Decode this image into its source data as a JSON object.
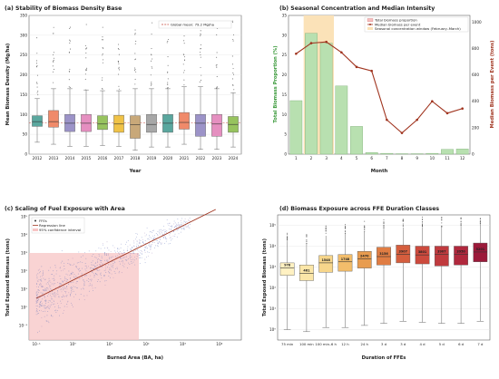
{
  "colors": {
    "a_boxes": [
      "#5aa79e",
      "#f08a6a",
      "#9c93c8",
      "#e58fc0",
      "#97c35e",
      "#f0c246",
      "#c8a879",
      "#a7a7a7",
      "#5aa79e",
      "#f08a6a",
      "#9c93c8",
      "#e58fc0",
      "#97c35e"
    ],
    "b_bar": "#b8e0b0",
    "b_line": "#a0341f",
    "b_window": "#fbe2b8",
    "c_points": "#5b6fb8",
    "c_line": "#a0341f",
    "c_ci": "#f7c4c4",
    "d_boxes": [
      "#fff1c2",
      "#fbe6a8",
      "#f7d68b",
      "#f2bd6b",
      "#e89c4f",
      "#e07d43",
      "#d55e3e",
      "#cc4a3d",
      "#c03a3e",
      "#b0283d",
      "#9b1a3a"
    ]
  },
  "chart_data": [
    {
      "type": "box",
      "title": "(a) Stability of Biomass Density Base",
      "xlabel": "Year",
      "ylabel": "Mean Biomass Density (Mg/ha)",
      "ylim": [
        0,
        350
      ],
      "yticks": [
        "0",
        "50",
        "100",
        "150",
        "200",
        "250",
        "300",
        "350"
      ],
      "categories": [
        "2012",
        "2013",
        "2014",
        "2015",
        "2016",
        "2017",
        "2018",
        "2019",
        "2020",
        "2021",
        "2022",
        "2023",
        "2024"
      ],
      "boxes": [
        {
          "q1": 70,
          "median": 82,
          "q3": 97,
          "wlo": 30,
          "whi": 140
        },
        {
          "q1": 68,
          "median": 82,
          "q3": 110,
          "wlo": 25,
          "whi": 165
        },
        {
          "q1": 57,
          "median": 78,
          "q3": 100,
          "wlo": 20,
          "whi": 165
        },
        {
          "q1": 57,
          "median": 78,
          "q3": 100,
          "wlo": 20,
          "whi": 162
        },
        {
          "q1": 62,
          "median": 76,
          "q3": 97,
          "wlo": 22,
          "whi": 160
        },
        {
          "q1": 55,
          "median": 76,
          "q3": 98,
          "wlo": 20,
          "whi": 160
        },
        {
          "q1": 40,
          "median": 74,
          "q3": 97,
          "wlo": 10,
          "whi": 165
        },
        {
          "q1": 55,
          "median": 75,
          "q3": 100,
          "wlo": 18,
          "whi": 165
        },
        {
          "q1": 55,
          "median": 78,
          "q3": 100,
          "wlo": 18,
          "whi": 165
        },
        {
          "q1": 63,
          "median": 80,
          "q3": 105,
          "wlo": 25,
          "whi": 170
        },
        {
          "q1": 45,
          "median": 78,
          "q3": 100,
          "wlo": 12,
          "whi": 170
        },
        {
          "q1": 45,
          "median": 76,
          "q3": 100,
          "wlo": 12,
          "whi": 165
        },
        {
          "q1": 55,
          "median": 75,
          "q3": 95,
          "wlo": 18,
          "whi": 155
        }
      ],
      "hline": 79.2,
      "legend": [
        "Global mean: 79.2 Mg/ha"
      ]
    },
    {
      "type": "bar+line",
      "title": "(b) Seasonal Concentration and Median Intensity",
      "xlabel": "Month",
      "ylabel": "Total Biomass Proportion (%)",
      "y2label": "Median Biomass per Event (tons)",
      "categories": [
        "1",
        "2",
        "3",
        "4",
        "5",
        "6",
        "7",
        "8",
        "9",
        "10",
        "11",
        "12"
      ],
      "ylim": [
        0,
        35
      ],
      "yticks": [
        "0",
        "5",
        "10",
        "15",
        "20",
        "25",
        "30",
        "35"
      ],
      "y2lim": [
        0,
        1050
      ],
      "y2ticks": [
        "0",
        "200",
        "400",
        "600",
        "800",
        "1000"
      ],
      "bars": [
        13.5,
        30.5,
        28,
        17.2,
        7,
        0.4,
        0.2,
        0.1,
        0.1,
        0.2,
        1.2,
        1.3
      ],
      "line": [
        760,
        840,
        850,
        770,
        660,
        630,
        260,
        160,
        260,
        400,
        310,
        345
      ],
      "window_months": [
        2,
        3
      ],
      "legend": [
        "Total biomass proportion",
        "Median biomass per event",
        "Seasonal concentration window (February–March)"
      ]
    },
    {
      "type": "scatter",
      "title": "(c) Scaling of Fuel Exposure with Area",
      "xlabel": "Burned Area (BA, ha)",
      "ylabel": "Total Exposed Biomass (tons)",
      "xscale": "log",
      "yscale": "log",
      "xlim": [
        -1.2,
        4.6
      ],
      "ylim": [
        -1.8,
        5.1
      ],
      "xticks": [
        "10⁻¹",
        "10⁰",
        "10¹",
        "10²",
        "10³",
        "10⁴"
      ],
      "yticks": [
        "10⁻¹",
        "10⁰",
        "10¹",
        "10²",
        "10³",
        "10⁴",
        "10⁵"
      ],
      "regression": {
        "slope": 1,
        "intercept": 1.5
      },
      "ci_xmax": 1.8,
      "legend": [
        "FFEs",
        "Regression line",
        "95% confidence interval"
      ]
    },
    {
      "type": "box",
      "title": "(d) Biomass Exposure across FFE Duration Classes",
      "xlabel": "Duration of FFEs",
      "ylabel": "Total Exposed Biomass (tons)",
      "yscale": "log",
      "ylim": [
        -0.5,
        5.5
      ],
      "yticks": [
        "10⁰",
        "10¹",
        "10²",
        "10³",
        "10⁴",
        "10⁵"
      ],
      "categories": [
        "75 min",
        "100 min",
        "100 min–6 h",
        "12 h",
        "24 h",
        "3 d",
        "3 d",
        "4 d",
        "5 d",
        "6 d",
        "7 d"
      ],
      "labels": [
        "978",
        "461",
        "1548",
        "1748",
        "2470",
        "3156",
        "3907",
        "3801",
        "3907",
        "3950",
        "5201"
      ],
      "boxes": [
        {
          "q1": 2.6,
          "median": 2.95,
          "q3": 3.2,
          "wlo": 0,
          "whi": 4.2
        },
        {
          "q1": 2.35,
          "median": 2.7,
          "q3": 3.1,
          "wlo": -0.1,
          "whi": 4.1
        },
        {
          "q1": 2.75,
          "median": 3.2,
          "q3": 3.55,
          "wlo": 0.1,
          "whi": 4.5
        },
        {
          "q1": 2.8,
          "median": 3.25,
          "q3": 3.6,
          "wlo": 0.1,
          "whi": 4.6
        },
        {
          "q1": 2.95,
          "median": 3.4,
          "q3": 3.75,
          "wlo": 0.2,
          "whi": 4.7
        },
        {
          "q1": 3.1,
          "median": 3.5,
          "q3": 3.95,
          "wlo": 0.3,
          "whi": 4.8
        },
        {
          "q1": 3.2,
          "median": 3.6,
          "q3": 4.05,
          "wlo": 0.4,
          "whi": 4.9
        },
        {
          "q1": 3.15,
          "median": 3.58,
          "q3": 4.0,
          "wlo": 0.35,
          "whi": 4.9
        },
        {
          "q1": 3.05,
          "median": 3.6,
          "q3": 4.0,
          "wlo": 0.3,
          "whi": 4.9
        },
        {
          "q1": 3.1,
          "median": 3.6,
          "q3": 4.0,
          "wlo": 0.3,
          "whi": 4.95
        },
        {
          "q1": 3.25,
          "median": 3.72,
          "q3": 4.15,
          "wlo": 0.4,
          "whi": 5.0
        }
      ]
    }
  ]
}
